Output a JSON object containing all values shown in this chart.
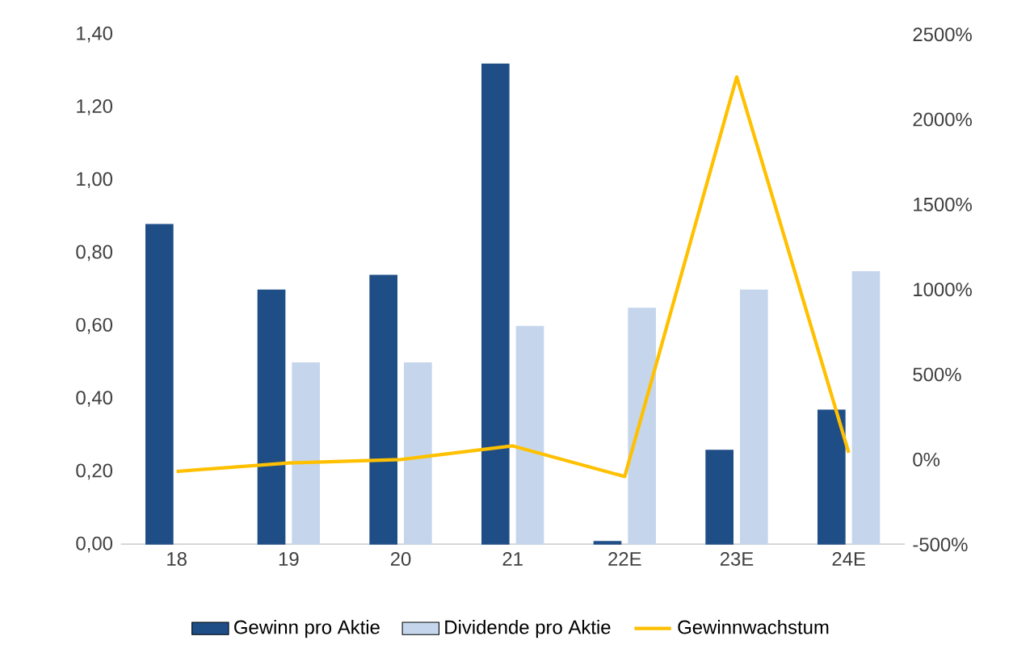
{
  "chart_data": {
    "type": "bar",
    "categories": [
      "18",
      "19",
      "20",
      "21",
      "22E",
      "23E",
      "24E"
    ],
    "series": [
      {
        "name": "Gewinn pro Aktie",
        "color": "#1f4e87",
        "values": [
          0.88,
          0.7,
          0.74,
          1.32,
          0.01,
          0.26,
          0.37
        ]
      },
      {
        "name": "Dividende pro Aktie",
        "color": "#c5d6ec",
        "values": [
          null,
          0.5,
          0.5,
          0.6,
          0.65,
          0.7,
          0.75
        ]
      },
      {
        "name": "Gewinnwachstum",
        "type": "line",
        "axis": "y2",
        "color": "#ffc000",
        "values": [
          -70,
          -20,
          0,
          80,
          -100,
          2250,
          40
        ]
      }
    ],
    "ylim": [
      0,
      1.4
    ],
    "yticks": [
      {
        "value": 0,
        "label": "0,00"
      },
      {
        "value": 0.2,
        "label": "0,20"
      },
      {
        "value": 0.4,
        "label": "0,40"
      },
      {
        "value": 0.6,
        "label": "0,60"
      },
      {
        "value": 0.8,
        "label": "0,80"
      },
      {
        "value": 1.0,
        "label": "1,00"
      },
      {
        "value": 1.2,
        "label": "1,20"
      },
      {
        "value": 1.4,
        "label": "1,40"
      }
    ],
    "y2lim": [
      -500,
      2500
    ],
    "y2ticks": [
      {
        "value": -500,
        "label": "-500%"
      },
      {
        "value": 0,
        "label": "0%"
      },
      {
        "value": 500,
        "label": "500%"
      },
      {
        "value": 1000,
        "label": "1000%"
      },
      {
        "value": 1500,
        "label": "1500%"
      },
      {
        "value": 2000,
        "label": "2000%"
      },
      {
        "value": 2500,
        "label": "2500%"
      }
    ],
    "legend": "bottom",
    "line_style": "solid"
  }
}
